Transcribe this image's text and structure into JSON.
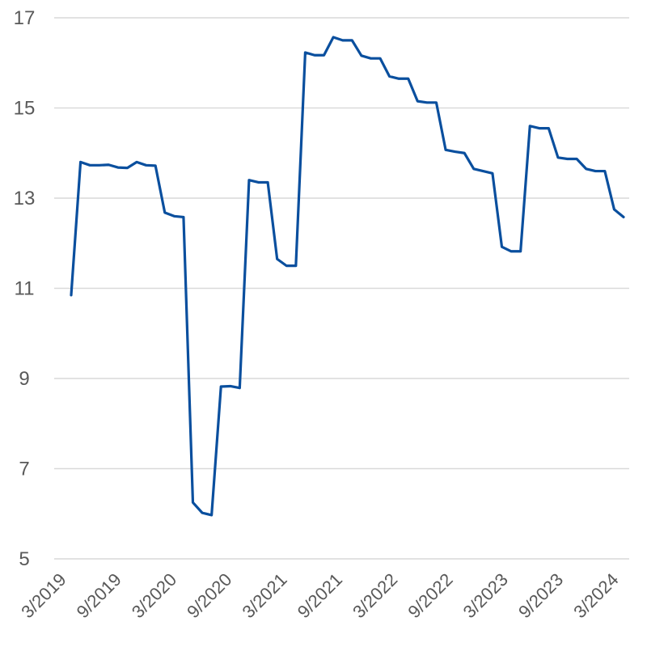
{
  "chart_data": {
    "type": "line",
    "title": "",
    "xlabel": "",
    "ylabel": "",
    "ylim": [
      5,
      17
    ],
    "yticks": [
      5,
      7,
      9,
      11,
      13,
      15,
      17
    ],
    "x_tick_labels": [
      "3/2019",
      "9/2019",
      "3/2020",
      "9/2020",
      "3/2021",
      "9/2021",
      "3/2022",
      "9/2022",
      "3/2023",
      "9/2023",
      "3/2024"
    ],
    "grid": true,
    "legend": "none",
    "colors": {
      "line": "#0a4f9e",
      "grid": "#d9d9d9",
      "text": "#595959"
    },
    "series": [
      {
        "values": [
          10.85,
          13.8,
          13.73,
          13.73,
          13.74,
          13.68,
          13.67,
          13.8,
          13.73,
          13.72,
          12.68,
          12.6,
          12.58,
          6.25,
          6.02,
          5.97,
          8.82,
          8.83,
          8.79,
          13.4,
          13.35,
          13.35,
          11.65,
          11.5,
          11.5,
          16.23,
          16.17,
          16.17,
          16.57,
          16.5,
          16.5,
          16.16,
          16.1,
          16.1,
          15.7,
          15.65,
          15.65,
          15.15,
          15.12,
          15.12,
          14.07,
          14.03,
          14.0,
          13.65,
          13.6,
          13.55,
          11.92,
          11.82,
          11.82,
          14.6,
          14.55,
          14.55,
          13.9,
          13.87,
          13.87,
          13.65,
          13.6,
          13.6,
          12.75,
          12.58
        ]
      }
    ]
  }
}
